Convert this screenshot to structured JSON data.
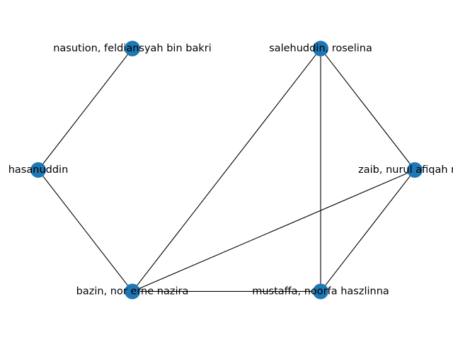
{
  "graph": {
    "node_color": "#1f77b4",
    "edge_color": "#000000",
    "nodes": [
      {
        "id": "n1",
        "label": "nasution, feldiansyah bin bakri"
      },
      {
        "id": "n2",
        "label": "hasanuddin"
      },
      {
        "id": "n3",
        "label": "bazin, nor erne nazira"
      },
      {
        "id": "n4",
        "label": "mustaffa, noorfa haszlinna"
      },
      {
        "id": "n5",
        "label": "zaib, nurul afiqah mat"
      },
      {
        "id": "n6",
        "label": "salehuddin, roselina"
      }
    ],
    "edges": [
      {
        "source": "n1",
        "target": "n2"
      },
      {
        "source": "n2",
        "target": "n3"
      },
      {
        "source": "n6",
        "target": "n3"
      },
      {
        "source": "n3",
        "target": "n5"
      },
      {
        "source": "n3",
        "target": "n4"
      },
      {
        "source": "n6",
        "target": "n5"
      },
      {
        "source": "n6",
        "target": "n4"
      },
      {
        "source": "n5",
        "target": "n4"
      }
    ]
  }
}
